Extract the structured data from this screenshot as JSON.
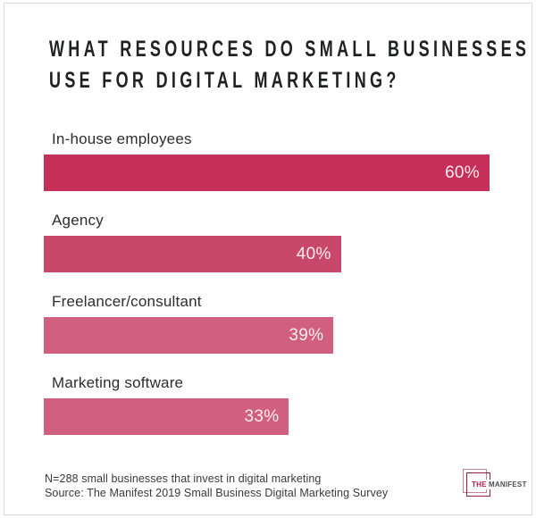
{
  "title": {
    "line1": "WHAT RESOURCES DO SMALL BUSINESSES",
    "line2": "USE FOR DIGITAL MARKETING?"
  },
  "chart_data": {
    "type": "bar",
    "orientation": "horizontal",
    "title": "What resources do small businesses use for digital marketing?",
    "categories": [
      "In-house employees",
      "Agency",
      "Freelancer/consultant",
      "Marketing software"
    ],
    "values": [
      60,
      40,
      39,
      33
    ],
    "value_labels": [
      "60%",
      "40%",
      "39%",
      "33%"
    ],
    "unit": "%",
    "xlim": [
      0,
      60
    ],
    "scale_max": 60,
    "grid": false,
    "legend": false,
    "bar_colors": [
      "#c52f58",
      "#c9486a",
      "#d15f7e",
      "#d15f7e"
    ]
  },
  "footer": {
    "note": "N=288 small businesses that invest in digital marketing",
    "source": "Source: The Manifest 2019 Small Business Digital Marketing Survey"
  },
  "logo": {
    "the": "THE",
    "manifest": "MANIFEST"
  },
  "colors": {
    "accent_dark": "#c52f58",
    "accent_mid": "#c9486a",
    "accent_light": "#d15f7e",
    "value_label_text": "#f7ecef",
    "frame_border": "#d9d9d9",
    "title_text": "#202124",
    "category_text": "#2d2d2f",
    "footer_text": "#3a3a3c",
    "logo_square_light": "#c2839a",
    "logo_square_dark": "#8e2045",
    "logo_the_text": "#b41f4e",
    "logo_manifest_text": "#4d4e52"
  }
}
